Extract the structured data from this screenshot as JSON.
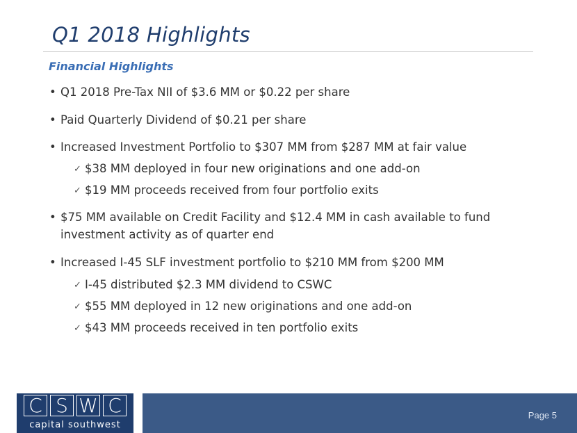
{
  "title": "Q1 2018 Highlights",
  "subtitle": "Financial Highlights",
  "bullets": [
    {
      "type": "bullet",
      "text": "Q1 2018 Pre-Tax NII of $3.6 MM or $0.22 per share"
    },
    {
      "type": "bullet",
      "text": "Paid Quarterly Dividend of $0.21 per share"
    },
    {
      "type": "bullet",
      "text": "Increased Investment Portfolio to $307 MM from $287 MM at fair value"
    },
    {
      "type": "check",
      "text": "$38 MM deployed in four new originations and one add-on"
    },
    {
      "type": "check",
      "text": "$19 MM proceeds received from four portfolio exits"
    },
    {
      "type": "bullet",
      "text": "$75 MM available on Credit Facility and $12.4 MM in cash available to fund"
    },
    {
      "type": "continuation",
      "text": "investment activity as of quarter end"
    },
    {
      "type": "bullet",
      "text": "Increased I-45 SLF investment portfolio to $210 MM from $200 MM"
    },
    {
      "type": "check",
      "text": "I-45 distributed $2.3 MM dividend to CSWC"
    },
    {
      "type": "check",
      "text": "$55 MM deployed in 12 new originations and one add-on"
    },
    {
      "type": "check",
      "text": "$43 MM proceeds received in ten portfolio exits"
    }
  ],
  "footer": {
    "logo_letters": [
      "C",
      "S",
      "W",
      "C"
    ],
    "logo_text": "capital southwest",
    "page_label": "Page 5"
  },
  "colors": {
    "title": "#1f3d6d",
    "subtitle": "#3a6eb5",
    "footer_bar": "#3b5a87"
  }
}
